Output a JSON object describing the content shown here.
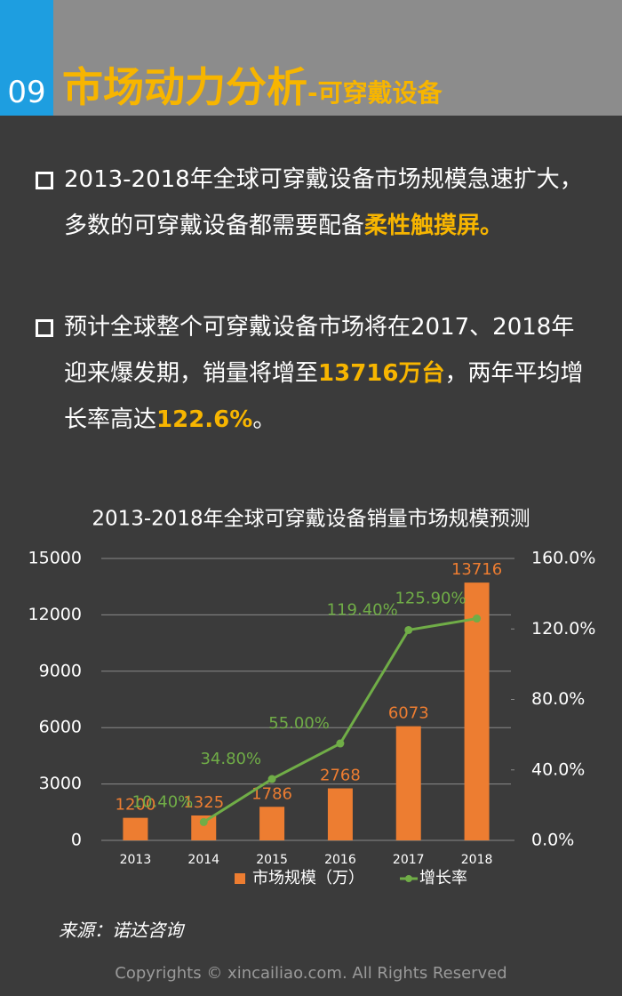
{
  "header": {
    "number": "09",
    "title": "市场动力分析",
    "subtitle": "-可穿戴设备"
  },
  "bullets": [
    [
      "2013-2018年全球可穿戴设备市场规模急速扩大，多数的可穿戴设备都需要配备",
      "柔性触摸屏。"
    ],
    [
      "预计全球整个可穿戴设备市场将在2017、2018年迎来爆发期，销量将增至",
      "13716万台",
      "，两年平均增长率高达",
      "122.6%",
      "。"
    ]
  ],
  "chart_data": {
    "type": "bar",
    "title": "2013-2018年全球可穿戴设备销量市场规模预测",
    "categories": [
      "2013",
      "2014",
      "2015",
      "2016",
      "2017",
      "2018"
    ],
    "series": [
      {
        "name": "市场规模（万）",
        "color": "#ed7d31",
        "values": [
          1200,
          1325,
          1786,
          2768,
          6073,
          13716
        ]
      },
      {
        "name": "增长率",
        "type": "line",
        "axis": "y2",
        "color": "#70ad47",
        "values": [
          null,
          10.4,
          34.8,
          55.0,
          119.4,
          125.9
        ],
        "value_labels": [
          null,
          "10.40%",
          "34.80%",
          "55.00%",
          "119.40%",
          "125.90%"
        ]
      }
    ],
    "ylim": [
      0,
      15000
    ],
    "yticks": [
      0,
      3000,
      6000,
      9000,
      12000,
      15000
    ],
    "y2lim": [
      0,
      160
    ],
    "y2ticks": [
      {
        "value": 0,
        "label": "0.0%"
      },
      {
        "value": 40,
        "label": "40.0%"
      },
      {
        "value": 80,
        "label": "80.0%"
      },
      {
        "value": 120,
        "label": "120.0%"
      },
      {
        "value": 160,
        "label": "160.0%"
      }
    ],
    "grid": true,
    "legend": "bottom"
  },
  "source": "来源：诺达咨询",
  "copyright": "Copyrights © xincailiao.com. All Rights Reserved"
}
